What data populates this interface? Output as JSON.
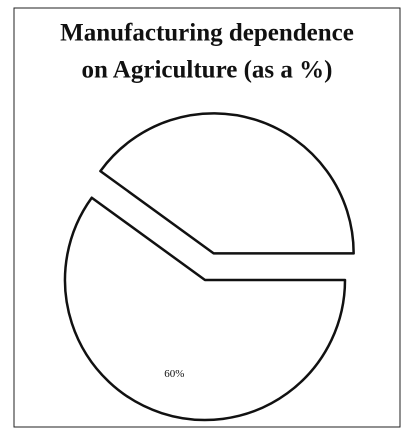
{
  "chart_data": {
    "type": "pie",
    "title": [
      "Manufacturing dependence",
      "on Agriculture (as a %)"
    ],
    "values": [
      60,
      40
    ],
    "value_labels": [
      "60%",
      null
    ],
    "explode": [
      false,
      true
    ],
    "color": "#ffffff"
  }
}
